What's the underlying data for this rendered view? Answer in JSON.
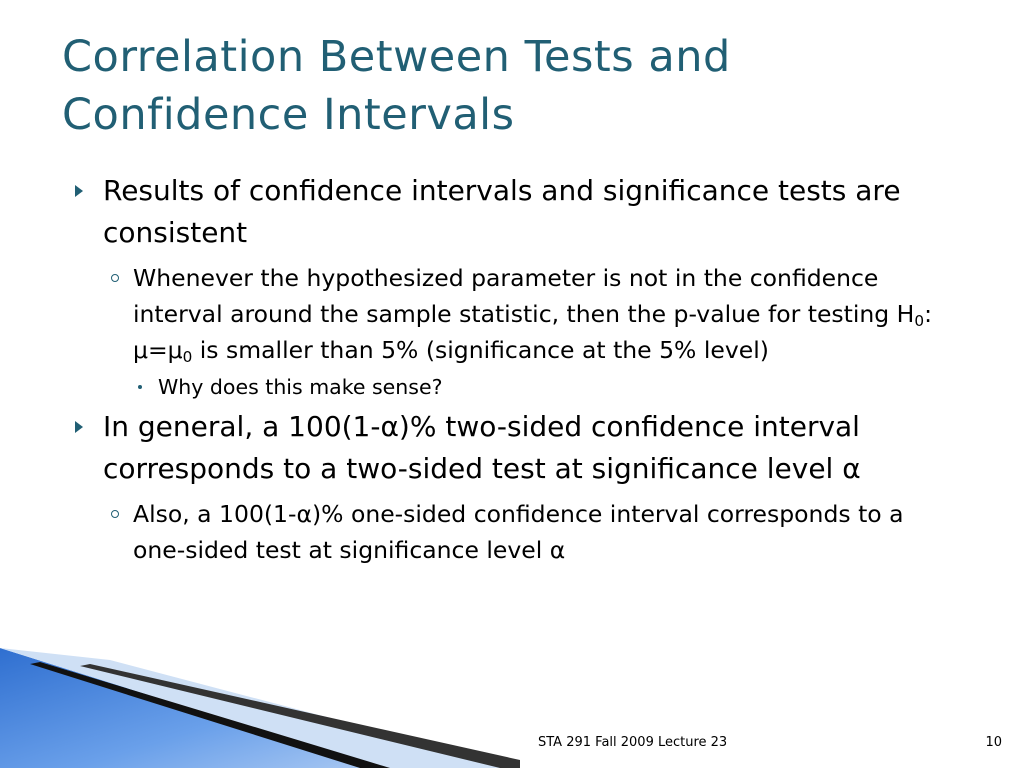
{
  "title": "Correlation Between Tests and Confidence Intervals",
  "bullets": [
    {
      "text": "Results of confidence intervals and significance tests are consistent",
      "children": [
        {
          "runs": [
            {
              "text": "Whenever the hypothesized parameter is not in the confidence interval around the sample statistic, then the p-value for testing H"
            },
            {
              "sub": "0"
            },
            {
              "text": ": μ=μ"
            },
            {
              "sub": "0"
            },
            {
              "text": " is smaller than 5% (significance at the 5% level)"
            }
          ],
          "children": [
            {
              "text": "Why does this make sense?"
            }
          ]
        }
      ]
    },
    {
      "text": "In general, a 100(1-α)% two-sided confidence interval corresponds to a two-sided test at significance level α",
      "children": [
        {
          "text": "Also, a 100(1-α)% one-sided confidence interval corresponds to a one-sided test at significance level α"
        }
      ]
    }
  ],
  "footer": {
    "text": "STA 291 Fall 2009 Lecture 23",
    "page_number": "10"
  }
}
